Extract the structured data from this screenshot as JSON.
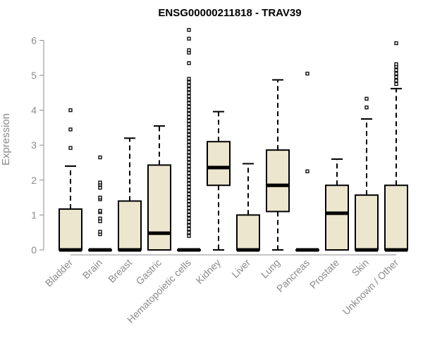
{
  "chart_data": {
    "type": "boxplot",
    "title": "ENSG00000211818 - TRAV39",
    "xlabel": "",
    "ylabel": "Expression",
    "ylim": [
      0,
      6.3
    ],
    "yticks": [
      "0",
      "1",
      "2",
      "3",
      "4",
      "5",
      "6"
    ],
    "box_fill": "#ede6cf",
    "line_color": "#000000",
    "axis_color": "#8a8a8a",
    "categories": [
      "Bladder",
      "Brain",
      "Breast",
      "Gastric",
      "Hematopoietic cells",
      "Kidney",
      "Liver",
      "Lung",
      "Pancreas",
      "Prostate",
      "Skin",
      "Unknown / Other"
    ],
    "boxes": [
      {
        "min": 0,
        "q1": 0,
        "median": 0,
        "q3": 1.17,
        "max": 2.4,
        "outliers": [
          2.92,
          3.45,
          4.0
        ]
      },
      {
        "min": 0,
        "q1": 0,
        "median": 0,
        "q3": 0,
        "max": 0,
        "outliers": [
          0.45,
          0.52,
          0.82,
          0.9,
          1.08,
          1.12,
          1.45,
          1.5,
          1.78,
          1.87,
          1.93,
          2.65
        ]
      },
      {
        "min": 0,
        "q1": 0,
        "median": 0,
        "q3": 1.4,
        "max": 3.2,
        "outliers": []
      },
      {
        "min": 0,
        "q1": 0,
        "median": 0.48,
        "q3": 2.43,
        "max": 3.55,
        "outliers": []
      },
      {
        "min": 0,
        "q1": 0,
        "median": 0,
        "q3": 0,
        "max": 0,
        "outliers": [
          0.4,
          0.5,
          0.6,
          0.7,
          0.8,
          0.9,
          1.0,
          1.1,
          1.2,
          1.3,
          1.4,
          1.5,
          1.6,
          1.7,
          1.8,
          1.9,
          2.0,
          2.1,
          2.2,
          2.3,
          2.4,
          2.5,
          2.6,
          2.7,
          2.8,
          2.9,
          3.0,
          3.1,
          3.2,
          3.3,
          3.4,
          3.5,
          3.6,
          3.7,
          3.8,
          3.9,
          4.0,
          4.1,
          4.2,
          4.3,
          4.4,
          4.5,
          4.6,
          4.7,
          4.8,
          4.9,
          5.35,
          5.65,
          5.72,
          6.05,
          6.3
        ]
      },
      {
        "min": 0,
        "q1": 1.85,
        "median": 2.36,
        "q3": 3.1,
        "max": 3.96,
        "outliers": []
      },
      {
        "min": 0,
        "q1": 0,
        "median": 0,
        "q3": 1.0,
        "max": 2.47,
        "outliers": []
      },
      {
        "min": 0,
        "q1": 1.1,
        "median": 1.85,
        "q3": 2.86,
        "max": 4.87,
        "outliers": []
      },
      {
        "min": 0,
        "q1": 0,
        "median": 0,
        "q3": 0,
        "max": 0,
        "outliers": [
          2.25,
          5.05
        ]
      },
      {
        "min": 0,
        "q1": 0,
        "median": 1.05,
        "q3": 1.85,
        "max": 2.6,
        "outliers": []
      },
      {
        "min": 0,
        "q1": 0,
        "median": 0,
        "q3": 1.57,
        "max": 3.75,
        "outliers": [
          4.08,
          4.33
        ]
      },
      {
        "min": 0,
        "q1": 0,
        "median": 0,
        "q3": 1.85,
        "max": 4.62,
        "outliers": [
          4.75,
          4.85,
          4.95,
          5.05,
          5.15,
          5.25,
          5.32,
          5.92
        ]
      }
    ]
  }
}
